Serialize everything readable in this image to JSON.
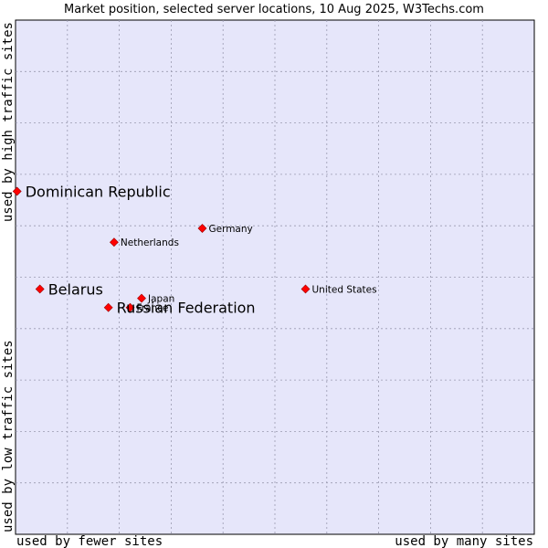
{
  "chart_data": {
    "type": "scatter",
    "title": "Market position, selected server locations, 10 Aug 2025, W3Techs.com",
    "x_label_low": "used by fewer sites",
    "x_label_high": "used by many sites",
    "y_label_low": "used by low traffic sites",
    "y_label_high": "used by high traffic sites",
    "xlim": [
      0,
      10
    ],
    "ylim": [
      0,
      10
    ],
    "grid": true,
    "colors": {
      "plot_background": "#e6e6fa",
      "grid": "#9a9ab0",
      "marker": "#ff0000",
      "marker_edge": "#990000"
    },
    "points": [
      {
        "name": "Dominican Republic",
        "x": 0.03,
        "y": 6.67,
        "size": "large"
      },
      {
        "name": "Germany",
        "x": 3.6,
        "y": 5.95,
        "size": "small"
      },
      {
        "name": "Netherlands",
        "x": 1.9,
        "y": 5.68,
        "size": "small"
      },
      {
        "name": "Belarus",
        "x": 0.47,
        "y": 4.77,
        "size": "large"
      },
      {
        "name": "United States",
        "x": 5.59,
        "y": 4.77,
        "size": "small"
      },
      {
        "name": "Japan",
        "x": 2.43,
        "y": 4.59,
        "size": "small"
      },
      {
        "name": "France",
        "x": 2.21,
        "y": 4.41,
        "size": "small"
      },
      {
        "name": "Russian Federation",
        "x": 1.79,
        "y": 4.41,
        "size": "large"
      }
    ]
  }
}
